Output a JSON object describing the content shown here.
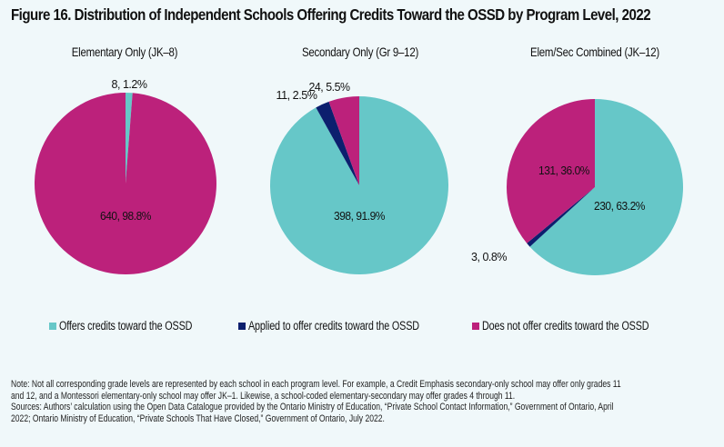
{
  "title": "Figure 16. Distribution of Independent Schools Offering Credits Toward the OSSD by Program Level, 2022",
  "colors": {
    "offers": "#66c7c8",
    "applied": "#0c1f6e",
    "does_not": "#bc217b",
    "background": "#f0f8fa"
  },
  "legend": [
    {
      "key": "offers",
      "label": "Offers credits toward the OSSD"
    },
    {
      "key": "applied",
      "label": "Applied to offer credits toward the OSSD"
    },
    {
      "key": "does_not",
      "label": "Does not offer credits toward the OSSD"
    }
  ],
  "notes": [
    "Note: Not all corresponding grade levels are represented by each school in each program level. For example, a Credit Emphasis secondary-only school may offer only grades 11",
    "and 12, and a Montessori elementary-only school may offer JK–1. Likewise, a school-coded elementary-secondary may offer grades 4 through 11.",
    "Sources: Authors’ calculation using the Open Data Catalogue provided by the Ontario Ministry of Education, “Private School Contact Information,” Government of Ontario, April",
    "2022; Ontario Ministry of Education, “Private Schools That Have Closed,” Government of Ontario, July 2022."
  ],
  "chart_data": [
    {
      "type": "pie",
      "title": "Elementary Only (JK–8)",
      "slices": [
        {
          "key": "offers",
          "name": "Offers credits toward the OSSD",
          "value": 8,
          "percent": 1.2,
          "label": "8, 1.2%"
        },
        {
          "key": "applied",
          "name": "Applied to offer credits toward the OSSD",
          "value": 0,
          "percent": 0.0,
          "label": ""
        },
        {
          "key": "does_not",
          "name": "Does not offer credits toward the OSSD",
          "value": 640,
          "percent": 98.8,
          "label": "640, 98.8%"
        }
      ]
    },
    {
      "type": "pie",
      "title": "Secondary Only (Gr 9–12)",
      "slices": [
        {
          "key": "offers",
          "name": "Offers credits toward the OSSD",
          "value": 398,
          "percent": 91.9,
          "label": "398, 91.9%"
        },
        {
          "key": "applied",
          "name": "Applied to offer credits toward the OSSD",
          "value": 11,
          "percent": 2.5,
          "label": "11, 2.5%"
        },
        {
          "key": "does_not",
          "name": "Does not offer credits toward the OSSD",
          "value": 24,
          "percent": 5.5,
          "label": "24, 5.5%"
        }
      ]
    },
    {
      "type": "pie",
      "title": "Elem/Sec Combined (JK–12)",
      "slices": [
        {
          "key": "offers",
          "name": "Offers credits toward the OSSD",
          "value": 230,
          "percent": 63.2,
          "label": "230, 63.2%"
        },
        {
          "key": "applied",
          "name": "Applied to offer credits toward the OSSD",
          "value": 3,
          "percent": 0.8,
          "label": "3, 0.8%"
        },
        {
          "key": "does_not",
          "name": "Does not offer credits toward the OSSD",
          "value": 131,
          "percent": 36.0,
          "label": "131, 36.0%"
        }
      ]
    }
  ]
}
